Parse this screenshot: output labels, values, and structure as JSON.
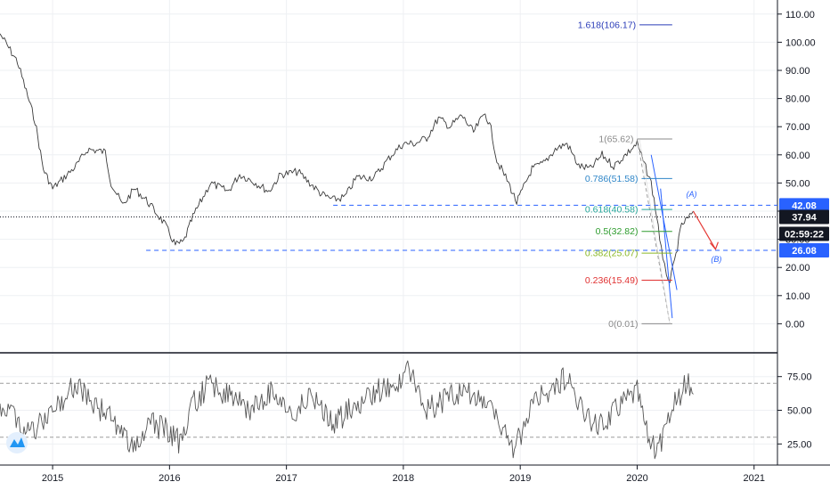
{
  "chart_data": [
    {
      "type": "line",
      "title": "",
      "x_ticks": [
        "2015",
        "2016",
        "2017",
        "2018",
        "2019",
        "2020",
        "2021"
      ],
      "x_tick_years": [
        2015,
        2016,
        2017,
        2018,
        2019,
        2020,
        2021
      ],
      "xlim": [
        2014.55,
        2021.2
      ],
      "y_ticks": [
        "0.00",
        "10.00",
        "20.00",
        "30.00",
        "40.00",
        "50.00",
        "60.00",
        "70.00",
        "80.00",
        "90.00",
        "100.00",
        "110.00"
      ],
      "ylim": [
        -10,
        115
      ],
      "grid": true,
      "series": [
        {
          "x": [
            2014.55,
            2014.7,
            2014.85,
            2014.92,
            2015.0,
            2015.1,
            2015.2,
            2015.3,
            2015.45,
            2015.5,
            2015.6,
            2015.7,
            2015.8,
            2015.95,
            2016.05,
            2016.12,
            2016.2,
            2016.35,
            2016.5,
            2016.6,
            2016.7,
            2016.85,
            2016.95,
            2017.1,
            2017.2,
            2017.3,
            2017.4,
            2017.5,
            2017.6,
            2017.75,
            2017.9,
            2018.0,
            2018.1,
            2018.2,
            2018.3,
            2018.4,
            2018.5,
            2018.6,
            2018.7,
            2018.75,
            2018.8,
            2018.9,
            2018.97,
            2019.1,
            2019.2,
            2019.3,
            2019.4,
            2019.5,
            2019.6,
            2019.7,
            2019.8,
            2019.9,
            2020.0,
            2020.05,
            2020.12,
            2020.18,
            2020.22,
            2020.25,
            2020.28,
            2020.32,
            2020.38,
            2020.45,
            2020.48
          ],
          "values": [
            103,
            93,
            72,
            55,
            48,
            52,
            56,
            62,
            61,
            50,
            42,
            48,
            44,
            36,
            28,
            29,
            38,
            50,
            47,
            53,
            51,
            47,
            53,
            54,
            50,
            46,
            44,
            45,
            52,
            52,
            60,
            64,
            64,
            66,
            73,
            70,
            74,
            68,
            75,
            69,
            58,
            50,
            43,
            55,
            57,
            62,
            64,
            56,
            55,
            60,
            56,
            60,
            64,
            58,
            50,
            35,
            22,
            18,
            15,
            22,
            35,
            38,
            40
          ]
        }
      ],
      "fibonacci": [
        {
          "label": "1.618(106.17)",
          "value": 106.17,
          "color": "#2a3cb8"
        },
        {
          "label": "1(65.62)",
          "value": 65.62,
          "color": "#8a8a8a"
        },
        {
          "label": "0.786(51.58)",
          "value": 51.58,
          "color": "#2f86c8"
        },
        {
          "label": "0.618(40.58)",
          "value": 40.58,
          "color": "#26a69a"
        },
        {
          "label": "0.5(32.82)",
          "value": 32.82,
          "color": "#2e9c2e"
        },
        {
          "label": "0.382(25.07)",
          "value": 25.07,
          "color": "#8ab826"
        },
        {
          "label": "0.236(15.49)",
          "value": 15.49,
          "color": "#e03030"
        },
        {
          "label": "0(0.01)",
          "value": 0.01,
          "color": "#8a8a8a"
        }
      ],
      "horizontal_levels": [
        42.08,
        26.08
      ],
      "wave_labels": [
        "(A)",
        "(B)"
      ],
      "price_tags": [
        {
          "text": "42.08",
          "value": 42.08,
          "color": "#2962ff"
        },
        {
          "text": "37.94",
          "value": 37.94,
          "color": "#131722"
        },
        {
          "text": "02:59:22",
          "value": 33.2,
          "color": "#131722"
        },
        {
          "text": "26.08",
          "value": 26.08,
          "color": "#2962ff"
        }
      ]
    },
    {
      "type": "line",
      "title": "",
      "y_ticks": [
        "25.00",
        "50.00",
        "75.00"
      ],
      "ylim": [
        10,
        92
      ],
      "reference_levels": [
        70,
        30
      ],
      "series": [
        {
          "x": [
            2014.55,
            2014.7,
            2014.8,
            2014.9,
            2015.0,
            2015.1,
            2015.2,
            2015.35,
            2015.5,
            2015.6,
            2015.7,
            2015.85,
            2016.0,
            2016.1,
            2016.2,
            2016.35,
            2016.5,
            2016.7,
            2016.9,
            2017.05,
            2017.2,
            2017.4,
            2017.6,
            2017.8,
            2018.0,
            2018.05,
            2018.2,
            2018.4,
            2018.55,
            2018.7,
            2018.85,
            2018.95,
            2019.1,
            2019.25,
            2019.4,
            2019.55,
            2019.7,
            2019.85,
            2020.0,
            2020.08,
            2020.15,
            2020.22,
            2020.3,
            2020.38,
            2020.45,
            2020.48
          ],
          "values": [
            55,
            45,
            30,
            40,
            50,
            60,
            70,
            55,
            45,
            30,
            25,
            40,
            35,
            25,
            55,
            70,
            60,
            50,
            65,
            45,
            60,
            40,
            55,
            65,
            70,
            82,
            50,
            60,
            65,
            55,
            35,
            20,
            55,
            65,
            75,
            45,
            40,
            55,
            65,
            35,
            20,
            30,
            50,
            65,
            70,
            62
          ]
        }
      ]
    }
  ]
}
